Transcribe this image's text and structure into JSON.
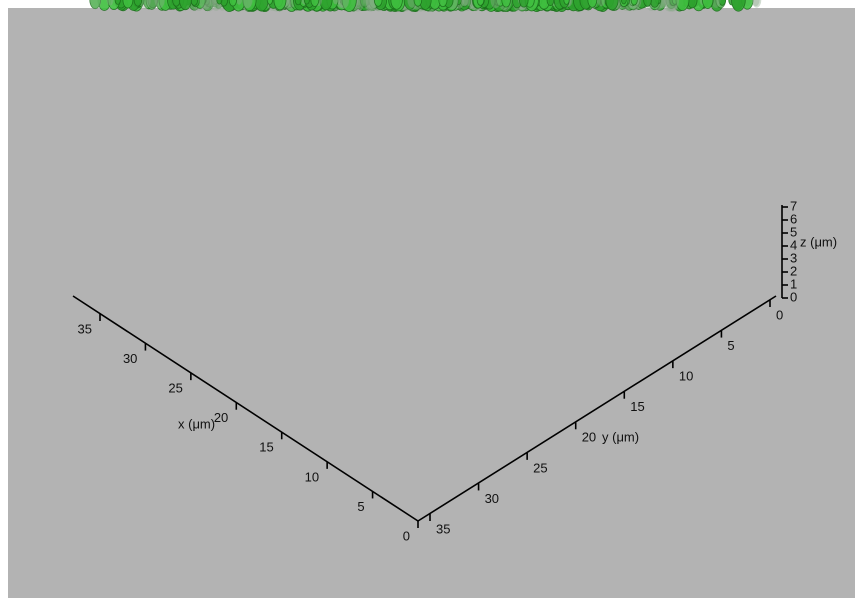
{
  "axes": {
    "x": {
      "label": "x (μm)",
      "ticks": [
        0,
        5,
        10,
        15,
        20,
        25,
        30,
        35
      ]
    },
    "y": {
      "label": "y (μm)",
      "ticks": [
        0,
        5,
        10,
        15,
        20,
        25,
        30,
        35
      ]
    },
    "z": {
      "label": "z (μm)",
      "ticks": [
        0,
        1,
        2,
        3,
        4,
        5,
        6,
        7
      ]
    }
  }
}
